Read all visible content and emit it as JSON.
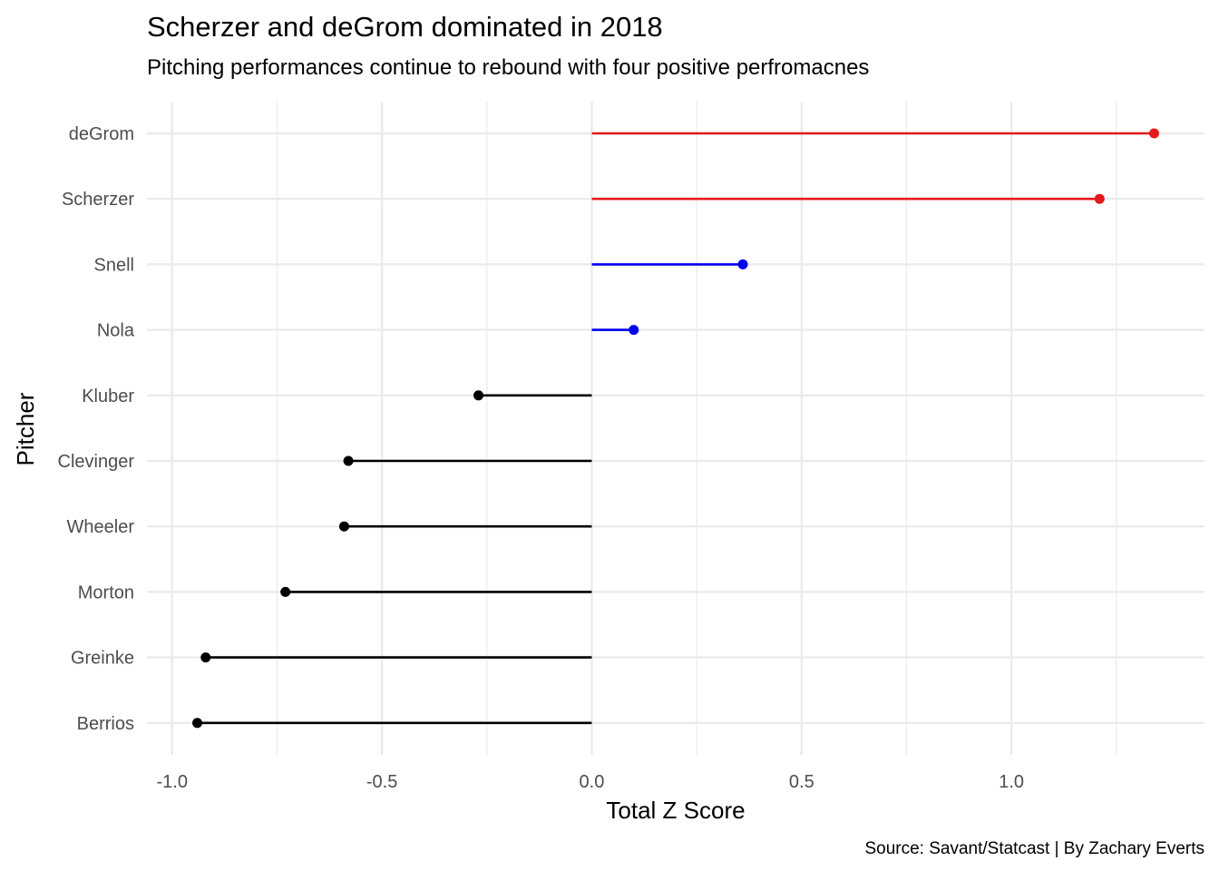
{
  "chart_data": {
    "type": "lollipop",
    "title": "Scherzer and deGrom dominated in 2018",
    "subtitle": "Pitching performances continue to rebound with four positive perfromacnes",
    "xlabel": "Total Z Score",
    "ylabel": "Pitcher",
    "caption": "Source: Savant/Statcast | By Zachary Everts",
    "xlim": [
      -1.06,
      1.46
    ],
    "x_ticks": [
      "-1.0",
      "-0.5",
      "0.0",
      "0.5",
      "1.0"
    ],
    "x_tick_values": [
      -1.0,
      -0.5,
      0.0,
      0.5,
      1.0
    ],
    "grid": true,
    "legend": "none",
    "categories": [
      "deGrom",
      "Scherzer",
      "Snell",
      "Nola",
      "Kluber",
      "Clevinger",
      "Wheeler",
      "Morton",
      "Greinke",
      "Berrios"
    ],
    "values": [
      1.34,
      1.21,
      0.36,
      0.1,
      -0.27,
      -0.58,
      -0.59,
      -0.73,
      -0.92,
      -0.94
    ],
    "colors": [
      "#e31a1c",
      "#e31a1c",
      "#0000ee",
      "#0000ee",
      "#000000",
      "#000000",
      "#000000",
      "#000000",
      "#000000",
      "#000000"
    ]
  }
}
